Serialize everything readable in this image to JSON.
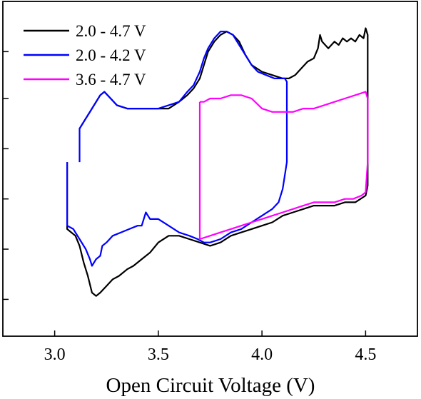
{
  "chart_data": {
    "type": "line",
    "title": "",
    "xlabel": "Open Circuit Voltage (V)",
    "ylabel": "",
    "xlim": [
      2.75,
      4.75
    ],
    "ylim": [
      0,
      1
    ],
    "x_ticks": [
      "3.0",
      "3.5",
      "4.0",
      "4.5"
    ],
    "x_tick_values": [
      3.0,
      3.5,
      4.0,
      4.5
    ],
    "y_tick_values": [
      0.11,
      0.26,
      0.41,
      0.56,
      0.71,
      0.85
    ],
    "y_tick_labels_shown": false,
    "grid": false,
    "legend_position": "top-left",
    "series": [
      {
        "name": "2.0 - 4.7 V",
        "color": "#000000",
        "points": [
          [
            3.06,
            0.52
          ],
          [
            3.06,
            0.32
          ],
          [
            3.08,
            0.31
          ],
          [
            3.1,
            0.3
          ],
          [
            3.12,
            0.27
          ],
          [
            3.14,
            0.22
          ],
          [
            3.16,
            0.18
          ],
          [
            3.18,
            0.13
          ],
          [
            3.2,
            0.12
          ],
          [
            3.22,
            0.13
          ],
          [
            3.25,
            0.15
          ],
          [
            3.28,
            0.17
          ],
          [
            3.31,
            0.18
          ],
          [
            3.35,
            0.2
          ],
          [
            3.38,
            0.21
          ],
          [
            3.42,
            0.23
          ],
          [
            3.46,
            0.25
          ],
          [
            3.5,
            0.28
          ],
          [
            3.55,
            0.3
          ],
          [
            3.6,
            0.3
          ],
          [
            3.65,
            0.29
          ],
          [
            3.7,
            0.28
          ],
          [
            3.75,
            0.27
          ],
          [
            3.8,
            0.28
          ],
          [
            3.85,
            0.3
          ],
          [
            3.9,
            0.31
          ],
          [
            3.95,
            0.32
          ],
          [
            4.0,
            0.33
          ],
          [
            4.05,
            0.34
          ],
          [
            4.1,
            0.36
          ],
          [
            4.15,
            0.37
          ],
          [
            4.2,
            0.38
          ],
          [
            4.25,
            0.39
          ],
          [
            4.3,
            0.39
          ],
          [
            4.35,
            0.39
          ],
          [
            4.4,
            0.4
          ],
          [
            4.45,
            0.4
          ],
          [
            4.5,
            0.42
          ],
          [
            4.51,
            0.45
          ],
          [
            4.51,
            0.9
          ],
          [
            4.5,
            0.92
          ],
          [
            4.49,
            0.89
          ],
          [
            4.47,
            0.9
          ],
          [
            4.45,
            0.88
          ],
          [
            4.43,
            0.89
          ],
          [
            4.41,
            0.88
          ],
          [
            4.39,
            0.89
          ],
          [
            4.37,
            0.87
          ],
          [
            4.35,
            0.88
          ],
          [
            4.32,
            0.86
          ],
          [
            4.29,
            0.88
          ],
          [
            4.28,
            0.9
          ],
          [
            4.27,
            0.86
          ],
          [
            4.25,
            0.83
          ],
          [
            4.22,
            0.82
          ],
          [
            4.19,
            0.8
          ],
          [
            4.16,
            0.78
          ],
          [
            4.13,
            0.77
          ],
          [
            4.1,
            0.77
          ],
          [
            4.05,
            0.78
          ],
          [
            4.0,
            0.79
          ],
          [
            3.95,
            0.81
          ],
          [
            3.92,
            0.84
          ],
          [
            3.89,
            0.88
          ],
          [
            3.86,
            0.9
          ],
          [
            3.83,
            0.91
          ],
          [
            3.8,
            0.9
          ],
          [
            3.77,
            0.88
          ],
          [
            3.74,
            0.85
          ],
          [
            3.72,
            0.81
          ],
          [
            3.7,
            0.77
          ],
          [
            3.67,
            0.74
          ],
          [
            3.64,
            0.72
          ],
          [
            3.6,
            0.7
          ],
          [
            3.55,
            0.68
          ],
          [
            3.5,
            0.68
          ],
          [
            3.45,
            0.68
          ],
          [
            3.4,
            0.68
          ],
          [
            3.35,
            0.68
          ],
          [
            3.3,
            0.69
          ],
          [
            3.27,
            0.71
          ],
          [
            3.24,
            0.73
          ],
          [
            3.22,
            0.72
          ],
          [
            3.2,
            0.7
          ],
          [
            3.17,
            0.67
          ],
          [
            3.15,
            0.65
          ],
          [
            3.12,
            0.62
          ]
        ]
      },
      {
        "name": "2.0 - 4.2 V",
        "color": "#0000ff",
        "points": [
          [
            3.12,
            0.52
          ],
          [
            3.12,
            0.62
          ],
          [
            3.15,
            0.65
          ],
          [
            3.17,
            0.67
          ],
          [
            3.2,
            0.7
          ],
          [
            3.22,
            0.72
          ],
          [
            3.24,
            0.73
          ],
          [
            3.27,
            0.71
          ],
          [
            3.3,
            0.69
          ],
          [
            3.35,
            0.68
          ],
          [
            3.4,
            0.68
          ],
          [
            3.45,
            0.68
          ],
          [
            3.5,
            0.68
          ],
          [
            3.55,
            0.69
          ],
          [
            3.6,
            0.7
          ],
          [
            3.64,
            0.73
          ],
          [
            3.67,
            0.75
          ],
          [
            3.7,
            0.79
          ],
          [
            3.72,
            0.83
          ],
          [
            3.74,
            0.86
          ],
          [
            3.77,
            0.89
          ],
          [
            3.8,
            0.91
          ],
          [
            3.83,
            0.91
          ],
          [
            3.86,
            0.9
          ],
          [
            3.89,
            0.87
          ],
          [
            3.92,
            0.84
          ],
          [
            3.95,
            0.81
          ],
          [
            3.98,
            0.79
          ],
          [
            4.02,
            0.78
          ],
          [
            4.06,
            0.77
          ],
          [
            4.11,
            0.77
          ],
          [
            4.12,
            0.76
          ],
          [
            4.12,
            0.52
          ],
          [
            4.1,
            0.44
          ],
          [
            4.08,
            0.4
          ],
          [
            4.05,
            0.38
          ],
          [
            4.0,
            0.36
          ],
          [
            3.95,
            0.34
          ],
          [
            3.9,
            0.32
          ],
          [
            3.85,
            0.31
          ],
          [
            3.8,
            0.29
          ],
          [
            3.75,
            0.28
          ],
          [
            3.72,
            0.28
          ],
          [
            3.69,
            0.29
          ],
          [
            3.65,
            0.3
          ],
          [
            3.6,
            0.31
          ],
          [
            3.55,
            0.33
          ],
          [
            3.5,
            0.35
          ],
          [
            3.46,
            0.35
          ],
          [
            3.44,
            0.37
          ],
          [
            3.42,
            0.33
          ],
          [
            3.4,
            0.33
          ],
          [
            3.36,
            0.32
          ],
          [
            3.32,
            0.31
          ],
          [
            3.28,
            0.3
          ],
          [
            3.25,
            0.28
          ],
          [
            3.23,
            0.27
          ],
          [
            3.22,
            0.24
          ],
          [
            3.2,
            0.23
          ],
          [
            3.18,
            0.21
          ],
          [
            3.17,
            0.23
          ],
          [
            3.15,
            0.26
          ],
          [
            3.12,
            0.29
          ],
          [
            3.09,
            0.32
          ],
          [
            3.06,
            0.33
          ],
          [
            3.06,
            0.52
          ]
        ]
      },
      {
        "name": "3.6 - 4.7 V",
        "color": "#ff00ff",
        "points": [
          [
            3.7,
            0.7
          ],
          [
            3.72,
            0.7
          ],
          [
            3.75,
            0.71
          ],
          [
            3.8,
            0.71
          ],
          [
            3.85,
            0.72
          ],
          [
            3.9,
            0.72
          ],
          [
            3.95,
            0.71
          ],
          [
            4.0,
            0.68
          ],
          [
            4.05,
            0.67
          ],
          [
            4.1,
            0.67
          ],
          [
            4.15,
            0.67
          ],
          [
            4.2,
            0.68
          ],
          [
            4.25,
            0.68
          ],
          [
            4.3,
            0.69
          ],
          [
            4.35,
            0.7
          ],
          [
            4.4,
            0.71
          ],
          [
            4.45,
            0.72
          ],
          [
            4.5,
            0.73
          ],
          [
            4.51,
            0.71
          ],
          [
            4.51,
            0.52
          ],
          [
            4.5,
            0.43
          ],
          [
            4.48,
            0.42
          ],
          [
            4.44,
            0.41
          ],
          [
            4.4,
            0.41
          ],
          [
            4.35,
            0.4
          ],
          [
            4.3,
            0.4
          ],
          [
            4.25,
            0.4
          ],
          [
            4.2,
            0.39
          ],
          [
            4.15,
            0.38
          ],
          [
            4.1,
            0.37
          ],
          [
            4.05,
            0.36
          ],
          [
            4.0,
            0.35
          ],
          [
            3.95,
            0.34
          ],
          [
            3.9,
            0.33
          ],
          [
            3.85,
            0.32
          ],
          [
            3.8,
            0.31
          ],
          [
            3.75,
            0.3
          ],
          [
            3.7,
            0.29
          ],
          [
            3.7,
            0.7
          ]
        ]
      }
    ]
  }
}
